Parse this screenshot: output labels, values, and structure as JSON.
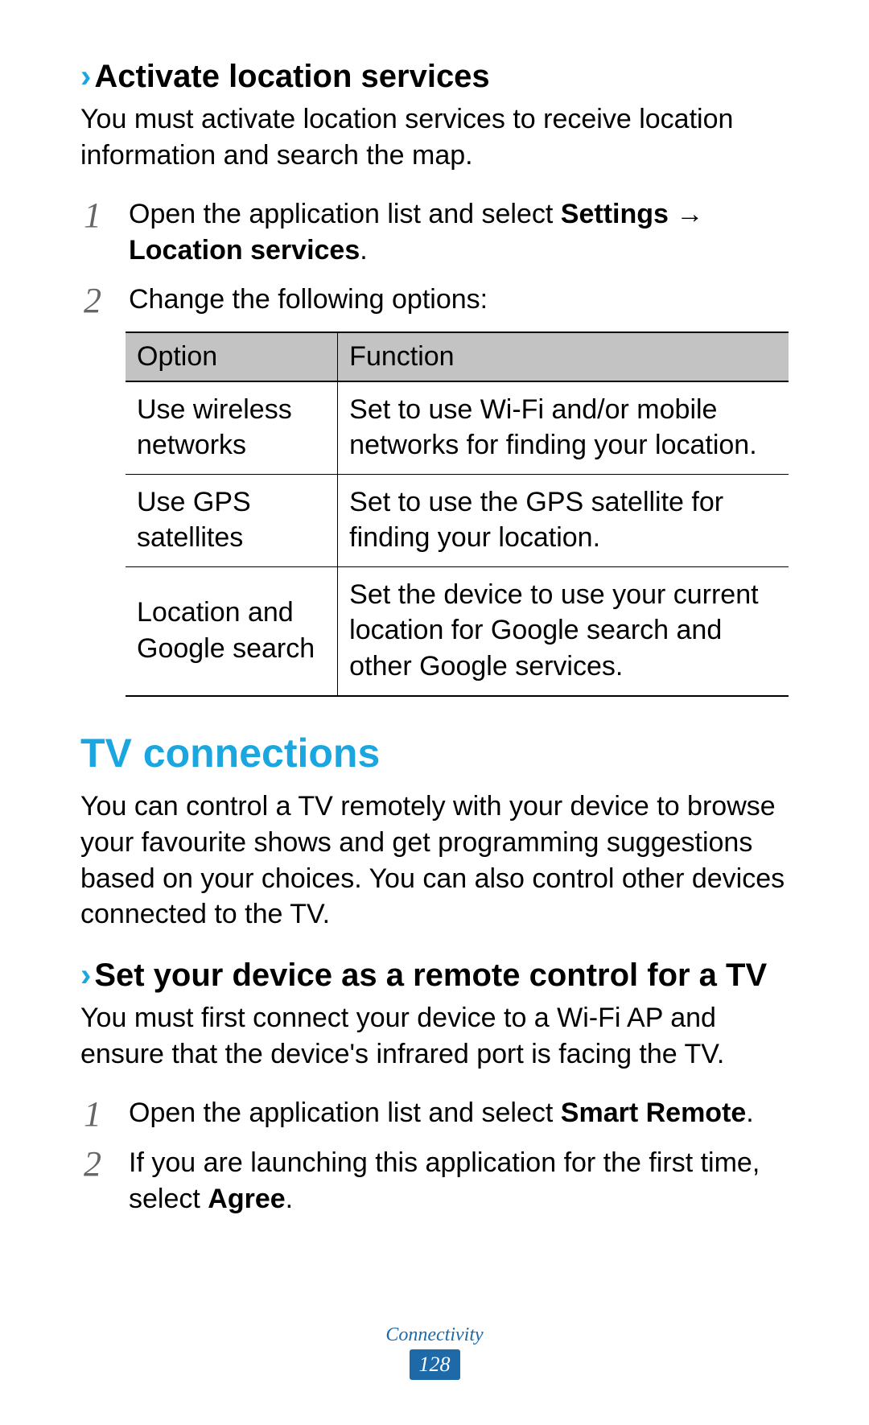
{
  "colors": {
    "accent": "#1ba6e0",
    "footer_blue": "#1e6aa8",
    "table_header_bg": "#c4c3c3",
    "text": "#000000",
    "step_num": "#666666",
    "background": "#ffffff"
  },
  "section1": {
    "chevron": "›",
    "heading": "Activate location services",
    "intro": "You must activate location services to receive location information and search the map.",
    "steps": [
      {
        "num": "1",
        "pre": "Open the application list and select ",
        "bold": "Settings → Location services",
        "post": "."
      },
      {
        "num": "2",
        "pre": "Change the following options:",
        "bold": "",
        "post": ""
      }
    ],
    "table": {
      "columns": [
        "Option",
        "Function"
      ],
      "rows": [
        [
          "Use wireless networks",
          "Set to use Wi-Fi and/or mobile networks for finding your location."
        ],
        [
          "Use GPS satellites",
          "Set to use the GPS satellite for finding your location."
        ],
        [
          "Location and Google search",
          "Set the device to use your current location for Google search and other Google services."
        ]
      ]
    }
  },
  "section2": {
    "heading": "TV connections",
    "intro": "You can control a TV remotely with your device to browse your favourite shows and get programming suggestions based on your choices. You can also control other devices connected to the TV.",
    "sub_chevron": "›",
    "sub_heading": "Set your device as a remote control for a TV",
    "sub_intro": "You must first connect your device to a Wi-Fi AP and ensure that the device's infrared port is facing the TV.",
    "steps": [
      {
        "num": "1",
        "pre": "Open the application list and select ",
        "bold": "Smart Remote",
        "post": "."
      },
      {
        "num": "2",
        "pre": "If you are launching this application for the first time, select ",
        "bold": "Agree",
        "post": "."
      }
    ]
  },
  "footer": {
    "section_name": "Connectivity",
    "page_number": "128"
  }
}
